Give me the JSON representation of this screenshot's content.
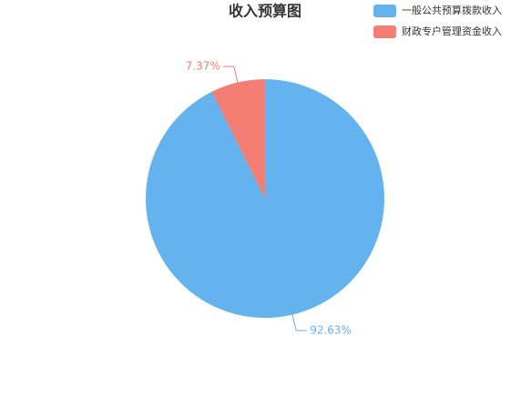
{
  "chart_data": {
    "type": "pie",
    "title": "收入预算图",
    "categories": [
      "一般公共预算拨款收入",
      "财政专户管理资金收入"
    ],
    "values": [
      92.63,
      7.37
    ],
    "value_labels": [
      "92.63%",
      "7.37%"
    ],
    "colors": [
      "#64b3ee",
      "#f47d74"
    ],
    "legend": "top-right"
  }
}
